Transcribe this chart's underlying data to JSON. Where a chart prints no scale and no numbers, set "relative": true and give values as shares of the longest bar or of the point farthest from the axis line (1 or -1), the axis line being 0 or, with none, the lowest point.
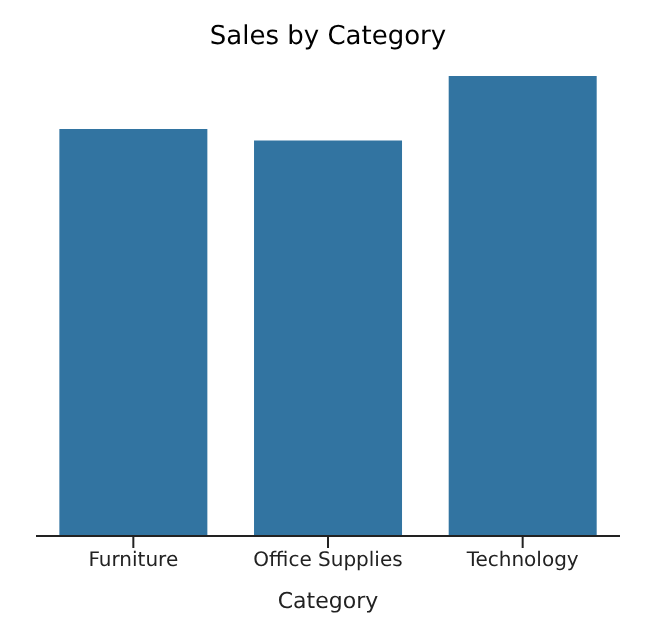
{
  "chart_data": {
    "type": "bar",
    "title": "Sales by Category",
    "xlabel": "Category",
    "categories": [
      "Furniture",
      "Office Supplies",
      "Technology"
    ],
    "values": [
      0.885,
      0.86,
      1
    ],
    "color": "#3274a1",
    "relative": true
  }
}
